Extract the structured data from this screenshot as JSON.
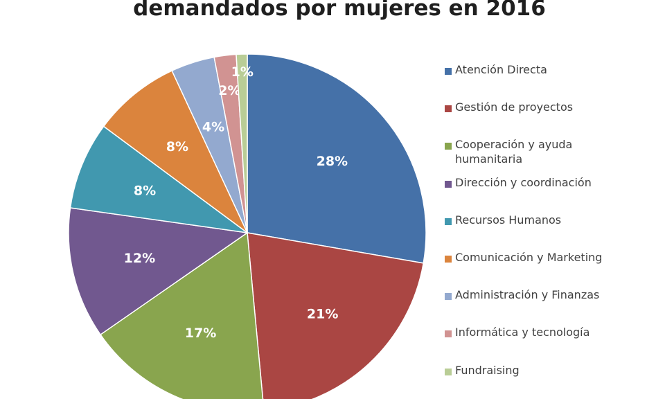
{
  "chart_data": {
    "type": "pie",
    "title": "demandados por mujeres en 2016",
    "legend_position": "right",
    "slices": [
      {
        "label": "Atención Directa",
        "value": 28,
        "value_label": "28%",
        "color": "#4571a8"
      },
      {
        "label": "Gestión de proyectos",
        "value": 21,
        "value_label": "21%",
        "color": "#aa4643"
      },
      {
        "label": "Cooperación y ayuda humanitaria",
        "value": 17,
        "value_label": "17%",
        "color": "#89a54e"
      },
      {
        "label": "Dirección y coordinación",
        "value": 12,
        "value_label": "12%",
        "color": "#71588f"
      },
      {
        "label": "Recursos Humanos",
        "value": 8,
        "value_label": "8%",
        "color": "#4198af"
      },
      {
        "label": "Comunicación y Marketing",
        "value": 8,
        "value_label": "8%",
        "color": "#db843d"
      },
      {
        "label": "Administración y Finanzas",
        "value": 4,
        "value_label": "4%",
        "color": "#93a9cf"
      },
      {
        "label": "Informática y tecnología",
        "value": 2,
        "value_label": "2%",
        "color": "#d19392"
      },
      {
        "label": "Fundraising",
        "value": 1,
        "value_label": "1%",
        "color": "#b9cd96"
      }
    ]
  }
}
